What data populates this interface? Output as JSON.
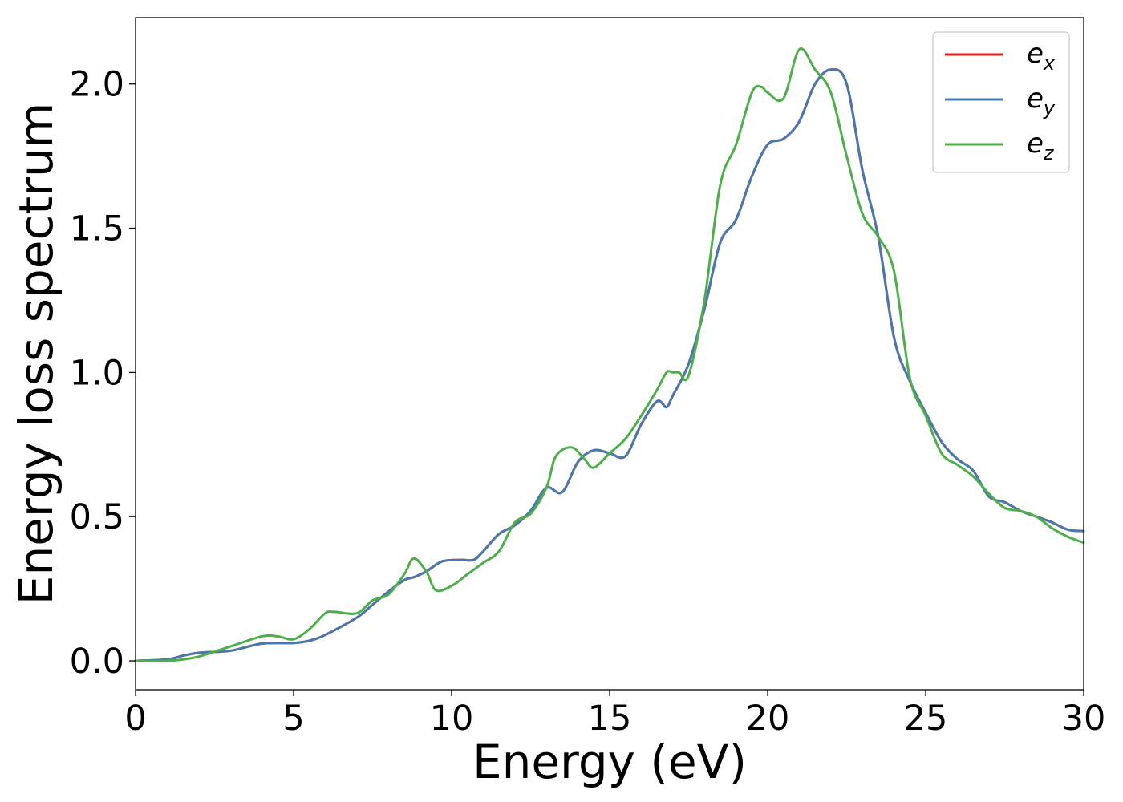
{
  "chart_data": {
    "type": "line",
    "xlabel": "Energy (eV)",
    "ylabel": "Energy loss spectrum",
    "xlim": [
      0,
      30
    ],
    "ylim": [
      -0.1,
      2.23
    ],
    "x_ticks": [
      "0",
      "5",
      "10",
      "15",
      "20",
      "25",
      "30"
    ],
    "y_ticks": [
      "0.0",
      "0.5",
      "1.0",
      "1.5",
      "2.0"
    ],
    "grid": false,
    "legend_position": "top-right",
    "series": [
      {
        "name": "e_x",
        "legend_base": "e",
        "legend_sub": "x",
        "color": "#e41a1c",
        "x": [
          0,
          1,
          1.5,
          2,
          3,
          4,
          5,
          5.5,
          6,
          7,
          7.5,
          8,
          8.5,
          8.8,
          9.2,
          9.7,
          10.3,
          10.7,
          11,
          11.5,
          12,
          12.5,
          13,
          13.5,
          14,
          14.5,
          15,
          15.5,
          16,
          16.5,
          16.8,
          17,
          17.5,
          18,
          18.5,
          19,
          19.5,
          20,
          20.5,
          21,
          21.5,
          22,
          22.5,
          23,
          23.5,
          24,
          24.5,
          25,
          25.5,
          26,
          26.5,
          27,
          27.5,
          28,
          28.5,
          29,
          29.5,
          30
        ],
        "values": [
          0,
          0.005,
          0.018,
          0.028,
          0.035,
          0.06,
          0.062,
          0.07,
          0.09,
          0.15,
          0.195,
          0.24,
          0.28,
          0.29,
          0.31,
          0.345,
          0.35,
          0.35,
          0.38,
          0.44,
          0.47,
          0.52,
          0.6,
          0.585,
          0.69,
          0.73,
          0.72,
          0.71,
          0.82,
          0.9,
          0.88,
          0.92,
          1.03,
          1.22,
          1.45,
          1.53,
          1.68,
          1.79,
          1.81,
          1.87,
          2.0,
          2.05,
          2.0,
          1.7,
          1.47,
          1.12,
          0.97,
          0.86,
          0.76,
          0.7,
          0.66,
          0.57,
          0.55,
          0.52,
          0.5,
          0.48,
          0.455,
          0.45
        ]
      },
      {
        "name": "e_y",
        "legend_base": "e",
        "legend_sub": "y",
        "color": "#4878b0",
        "x": [
          0,
          1,
          1.5,
          2,
          3,
          4,
          5,
          5.5,
          6,
          7,
          7.5,
          8,
          8.5,
          8.8,
          9.2,
          9.7,
          10.3,
          10.7,
          11,
          11.5,
          12,
          12.5,
          13,
          13.5,
          14,
          14.5,
          15,
          15.5,
          16,
          16.5,
          16.8,
          17,
          17.5,
          18,
          18.5,
          19,
          19.5,
          20,
          20.5,
          21,
          21.5,
          22,
          22.5,
          23,
          23.5,
          24,
          24.5,
          25,
          25.5,
          26,
          26.5,
          27,
          27.5,
          28,
          28.5,
          29,
          29.5,
          30
        ],
        "values": [
          0,
          0.005,
          0.018,
          0.028,
          0.035,
          0.06,
          0.062,
          0.07,
          0.09,
          0.15,
          0.195,
          0.24,
          0.28,
          0.29,
          0.31,
          0.345,
          0.35,
          0.35,
          0.38,
          0.44,
          0.47,
          0.52,
          0.6,
          0.585,
          0.69,
          0.73,
          0.72,
          0.71,
          0.82,
          0.9,
          0.88,
          0.92,
          1.03,
          1.22,
          1.45,
          1.53,
          1.68,
          1.79,
          1.81,
          1.87,
          2.0,
          2.05,
          2.0,
          1.7,
          1.47,
          1.12,
          0.97,
          0.86,
          0.76,
          0.7,
          0.66,
          0.57,
          0.55,
          0.52,
          0.5,
          0.48,
          0.455,
          0.45
        ]
      },
      {
        "name": "e_z",
        "legend_base": "e",
        "legend_sub": "z",
        "color": "#4daf4a",
        "x": [
          0,
          1,
          1.5,
          2,
          3,
          4,
          4.5,
          5,
          5.5,
          6,
          6.3,
          7,
          7.5,
          8,
          8.5,
          8.8,
          9.2,
          9.5,
          10,
          10.5,
          11,
          11.5,
          12,
          12.5,
          13,
          13.3,
          13.8,
          14.2,
          14.5,
          15,
          15.5,
          16,
          16.5,
          16.8,
          17,
          17.2,
          17.5,
          18,
          18.5,
          19,
          19.5,
          19.8,
          20,
          20.5,
          21,
          21.5,
          22,
          22.5,
          23,
          23.5,
          24,
          24.5,
          25,
          25.5,
          26,
          26.5,
          27,
          27.5,
          28,
          28.5,
          29,
          29.5,
          30
        ],
        "values": [
          0,
          0,
          0.005,
          0.015,
          0.05,
          0.085,
          0.085,
          0.075,
          0.11,
          0.165,
          0.17,
          0.165,
          0.21,
          0.23,
          0.3,
          0.355,
          0.31,
          0.245,
          0.26,
          0.3,
          0.34,
          0.38,
          0.48,
          0.51,
          0.6,
          0.71,
          0.74,
          0.7,
          0.67,
          0.72,
          0.77,
          0.85,
          0.94,
          1.0,
          1.0,
          1.0,
          0.99,
          1.25,
          1.65,
          1.79,
          1.97,
          1.99,
          1.97,
          1.95,
          2.12,
          2.05,
          1.97,
          1.75,
          1.55,
          1.47,
          1.35,
          0.98,
          0.85,
          0.72,
          0.68,
          0.64,
          0.58,
          0.53,
          0.52,
          0.5,
          0.46,
          0.43,
          0.41
        ]
      }
    ]
  }
}
